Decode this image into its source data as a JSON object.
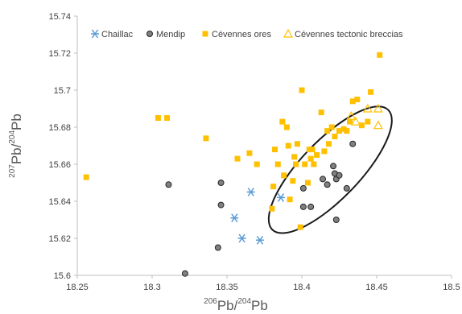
{
  "chart_data": {
    "type": "scatter",
    "title": "",
    "xlabel": {
      "base": "Pb/",
      "base2": "Pb",
      "sup1": "206",
      "sup2": "204"
    },
    "ylabel": {
      "base": "Pb/",
      "base2": "Pb",
      "sup1": "207",
      "sup2": "204"
    },
    "xlim": [
      18.25,
      18.5
    ],
    "ylim": [
      15.6,
      15.74
    ],
    "x_ticks": [
      "18.25",
      "18.3",
      "18.35",
      "18.4",
      "18.45",
      "18.5"
    ],
    "y_ticks": [
      "15.6",
      "15.62",
      "15.64",
      "15.66",
      "15.68",
      "15.7",
      "15.72",
      "15.74"
    ],
    "grid": false,
    "legend_position": "top",
    "series": [
      {
        "name": "Chaillac",
        "marker": "asterisk",
        "color": "#5b9bd5",
        "points": [
          [
            18.355,
            15.631
          ],
          [
            18.36,
            15.62
          ],
          [
            18.366,
            15.645
          ],
          [
            18.372,
            15.619
          ],
          [
            18.386,
            15.642
          ]
        ]
      },
      {
        "name": "Mendip",
        "marker": "circle",
        "color": "#808080",
        "points": [
          [
            18.311,
            15.649
          ],
          [
            18.322,
            15.601
          ],
          [
            18.344,
            15.615
          ],
          [
            18.346,
            15.65
          ],
          [
            18.346,
            15.638
          ],
          [
            18.401,
            15.647
          ],
          [
            18.401,
            15.637
          ],
          [
            18.406,
            15.637
          ],
          [
            18.414,
            15.652
          ],
          [
            18.417,
            15.649
          ],
          [
            18.421,
            15.659
          ],
          [
            18.422,
            15.655
          ],
          [
            18.423,
            15.652
          ],
          [
            18.423,
            15.63
          ],
          [
            18.425,
            15.654
          ],
          [
            18.43,
            15.647
          ],
          [
            18.434,
            15.671
          ]
        ]
      },
      {
        "name": "Cévennes ores",
        "marker": "square",
        "color": "#ffc000",
        "points": [
          [
            18.256,
            15.653
          ],
          [
            18.304,
            15.685
          ],
          [
            18.31,
            15.685
          ],
          [
            18.336,
            15.674
          ],
          [
            18.357,
            15.663
          ],
          [
            18.365,
            15.666
          ],
          [
            18.37,
            15.66
          ],
          [
            18.38,
            15.636
          ],
          [
            18.381,
            15.648
          ],
          [
            18.382,
            15.668
          ],
          [
            18.384,
            15.66
          ],
          [
            18.387,
            15.683
          ],
          [
            18.388,
            15.654
          ],
          [
            18.39,
            15.68
          ],
          [
            18.391,
            15.67
          ],
          [
            18.392,
            15.641
          ],
          [
            18.394,
            15.651
          ],
          [
            18.395,
            15.664
          ],
          [
            18.396,
            15.66
          ],
          [
            18.397,
            15.671
          ],
          [
            18.399,
            15.626
          ],
          [
            18.4,
            15.7
          ],
          [
            18.402,
            15.66
          ],
          [
            18.404,
            15.65
          ],
          [
            18.405,
            15.668
          ],
          [
            18.406,
            15.663
          ],
          [
            18.407,
            15.668
          ],
          [
            18.408,
            15.66
          ],
          [
            18.41,
            15.665
          ],
          [
            18.413,
            15.688
          ],
          [
            18.415,
            15.667
          ],
          [
            18.417,
            15.678
          ],
          [
            18.418,
            15.671
          ],
          [
            18.42,
            15.68
          ],
          [
            18.422,
            15.675
          ],
          [
            18.425,
            15.678
          ],
          [
            18.428,
            15.679
          ],
          [
            18.43,
            15.678
          ],
          [
            18.432,
            15.683
          ],
          [
            18.434,
            15.694
          ],
          [
            18.437,
            15.695
          ],
          [
            18.44,
            15.681
          ],
          [
            18.444,
            15.683
          ],
          [
            18.446,
            15.699
          ],
          [
            18.452,
            15.719
          ]
        ]
      },
      {
        "name": "Cévennes tectonic breccias",
        "marker": "triangle",
        "color": "#ffc000",
        "points": [
          [
            18.433,
            15.686
          ],
          [
            18.436,
            15.683
          ],
          [
            18.444,
            15.69
          ],
          [
            18.451,
            15.69
          ],
          [
            18.451,
            15.681
          ]
        ]
      }
    ],
    "ellipse": {
      "center": [
        18.419,
        15.657
      ],
      "rx": 0.0195,
      "ry": 0.045,
      "angle_deg": 44
    }
  }
}
